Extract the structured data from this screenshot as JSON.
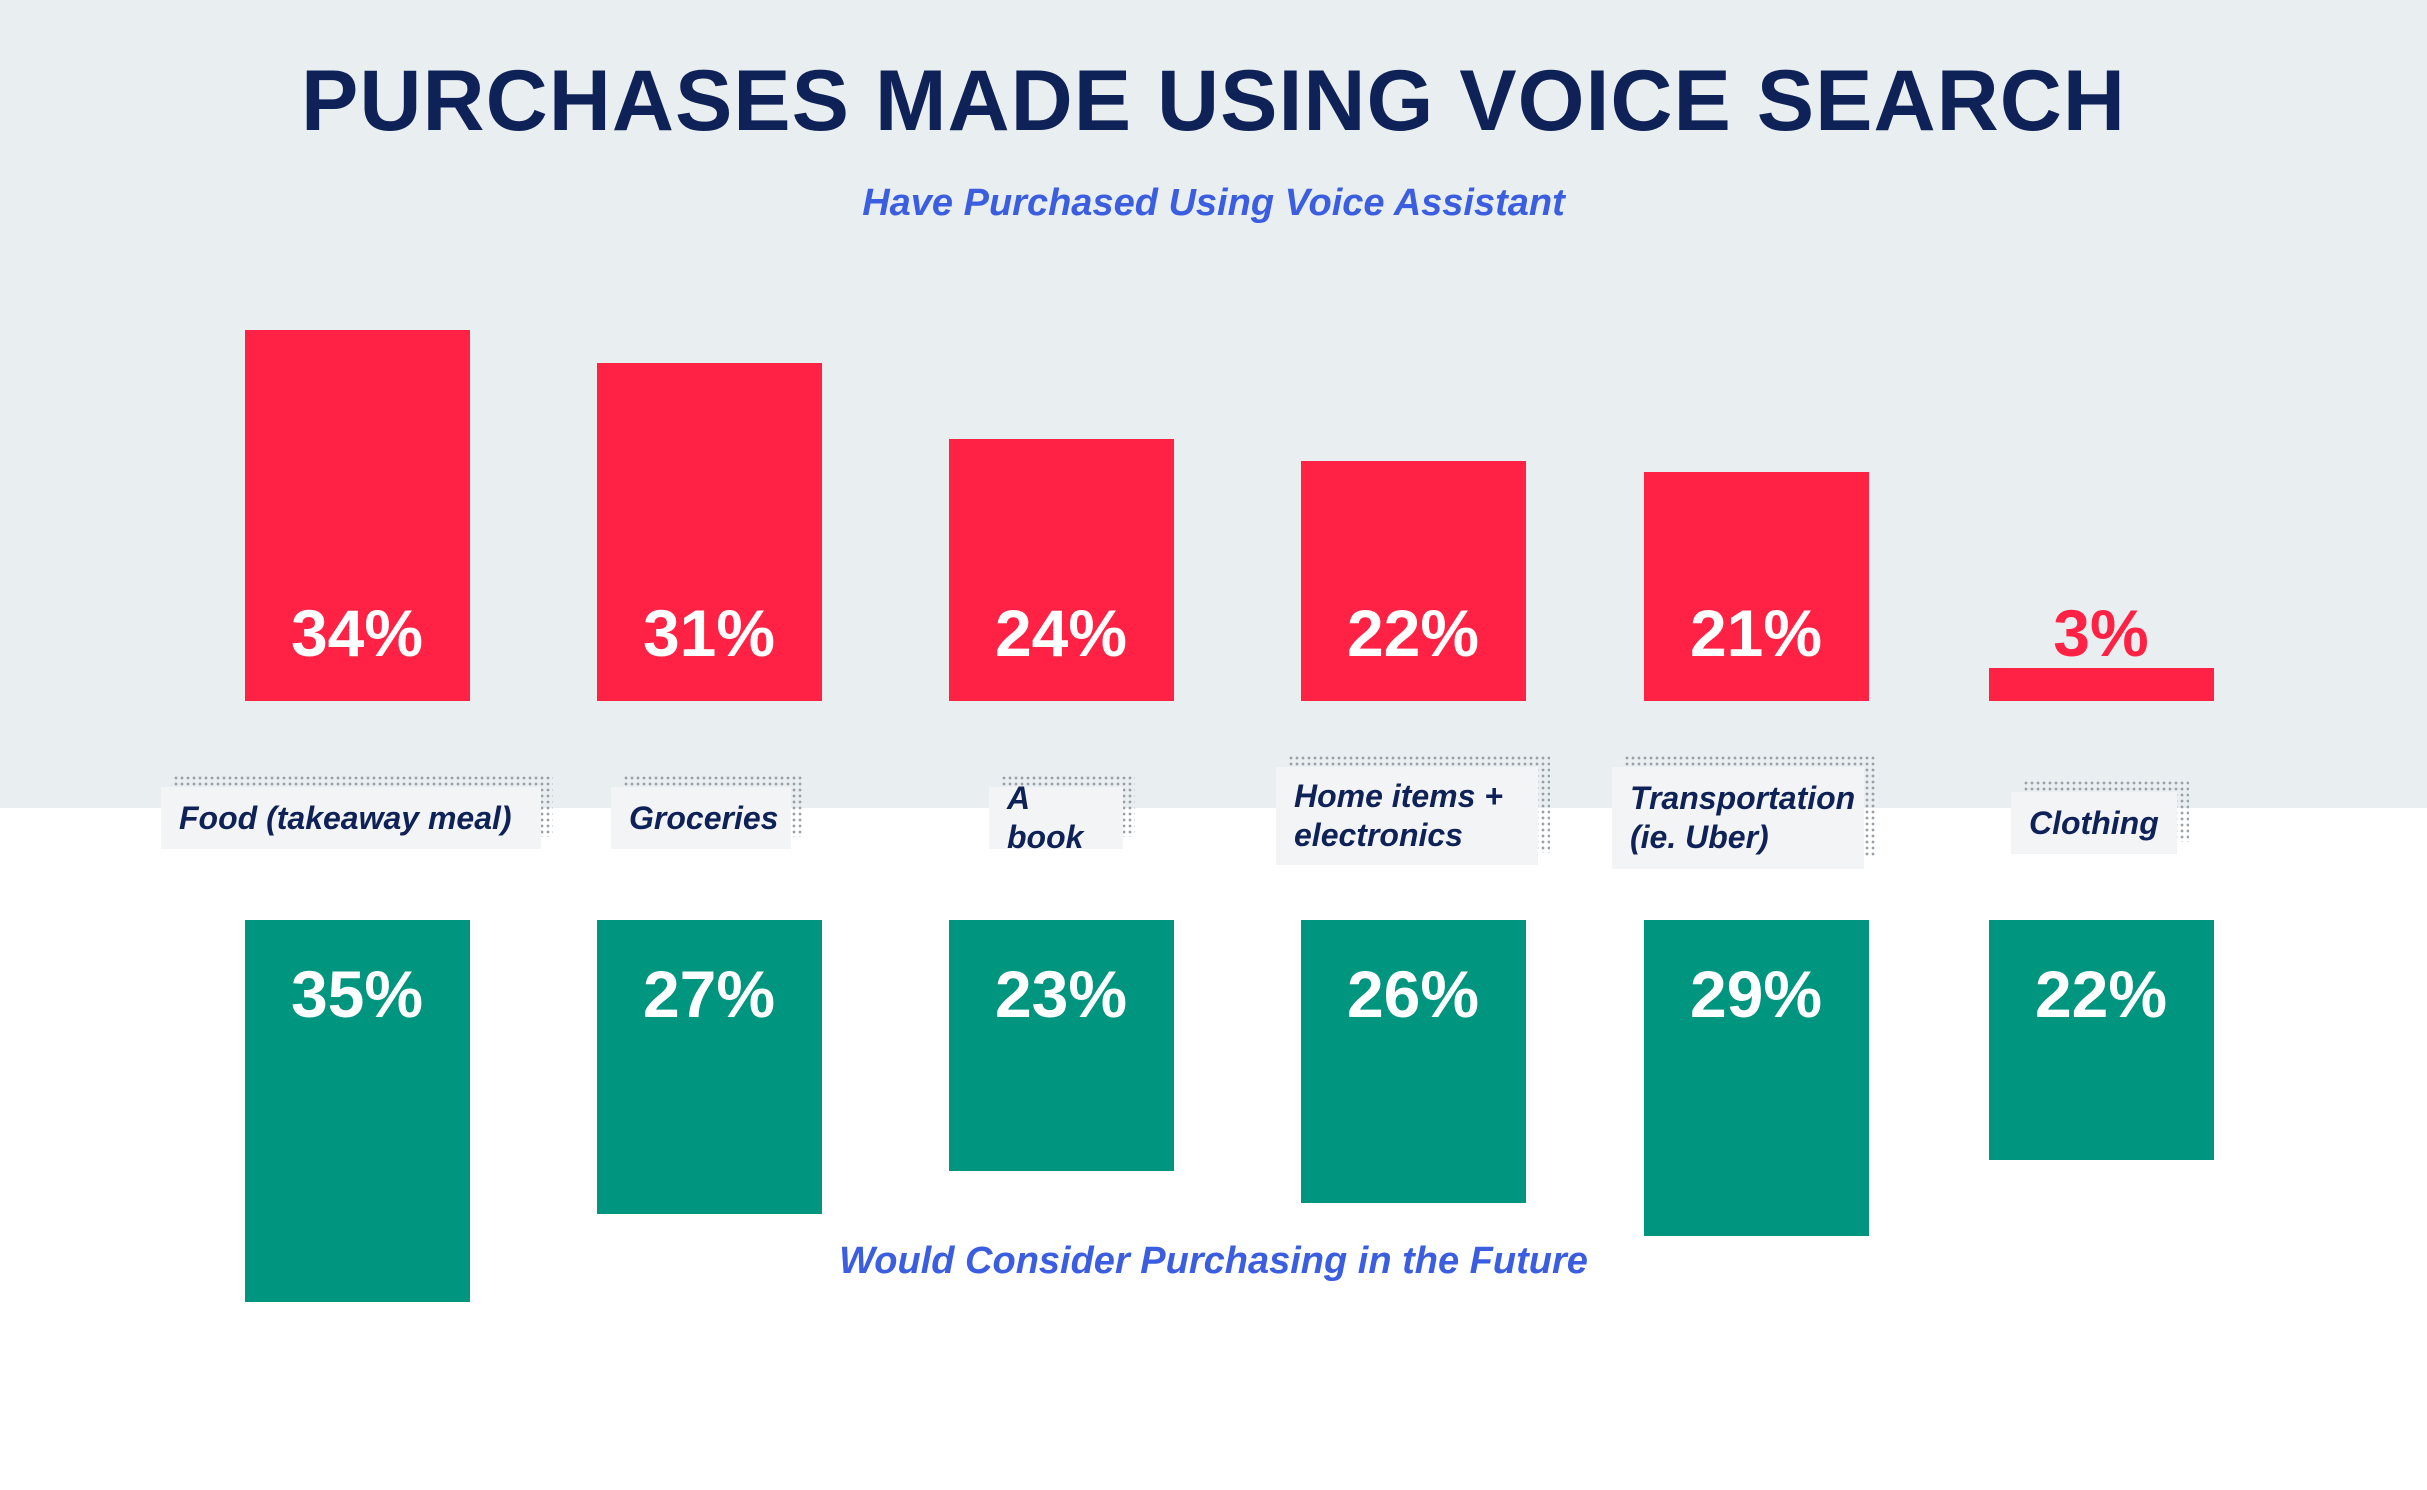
{
  "header": {
    "title": "PURCHASES MADE USING VOICE SEARCH"
  },
  "chart_data": {
    "type": "bar",
    "categories": [
      "Food (takeaway meal)",
      "Groceries",
      "A book",
      "Home items + electronics",
      "Transportation (ie. Uber)",
      "Clothing"
    ],
    "series": [
      {
        "name": "Have Purchased Using Voice Assistant",
        "values": [
          34,
          31,
          24,
          22,
          21,
          3
        ],
        "labels": [
          "34%",
          "31%",
          "24%",
          "22%",
          "21%",
          "3%"
        ],
        "color": "#ff2244"
      },
      {
        "name": "Would Consider Purchasing in the Future",
        "values": [
          35,
          27,
          23,
          26,
          29,
          22
        ],
        "labels": [
          "35%",
          "27%",
          "23%",
          "26%",
          "29%",
          "22%"
        ],
        "color": "#00957e"
      }
    ],
    "unit": "%",
    "background": {
      "top": "#e9eef0",
      "bottom": "#ffffff"
    },
    "colors": {
      "title": "#0f2257",
      "subtitle": "#3b5ee0",
      "category_text": "#0f2257"
    }
  }
}
